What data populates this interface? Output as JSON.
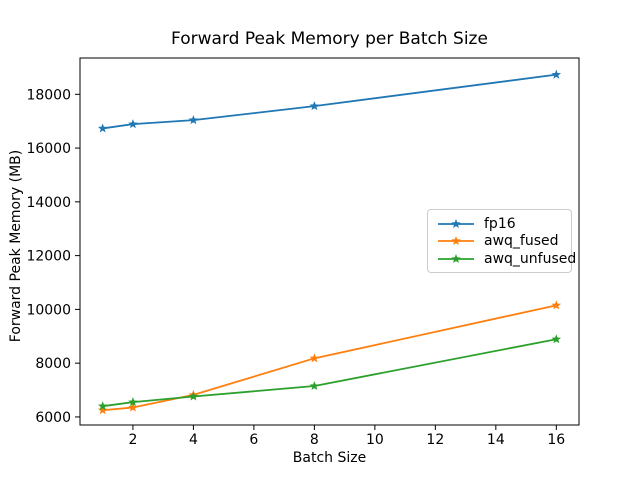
{
  "figure": {
    "background": "#ffffff",
    "spine_color": "#000000",
    "tick_color": "#000000"
  },
  "chart_data": {
    "type": "line",
    "title": "Forward Peak Memory per Batch Size",
    "xlabel": "Batch Size",
    "ylabel": "Forward Peak Memory (MB)",
    "x": [
      1,
      2,
      4,
      8,
      16
    ],
    "series": [
      {
        "name": "fp16",
        "color": "#1f77b4",
        "marker": "star",
        "values": [
          16730,
          16890,
          17040,
          17560,
          18730
        ]
      },
      {
        "name": "awq_fused",
        "color": "#ff7f0e",
        "marker": "star",
        "values": [
          6250,
          6350,
          6820,
          8180,
          10150
        ]
      },
      {
        "name": "awq_unfused",
        "color": "#2ca02c",
        "marker": "star",
        "values": [
          6400,
          6550,
          6760,
          7150,
          8890
        ]
      }
    ],
    "xlim": [
      0.25,
      16.75
    ],
    "ylim": [
      5700,
      19350
    ],
    "xticks": [
      2,
      4,
      6,
      8,
      10,
      12,
      14,
      16
    ],
    "yticks": [
      6000,
      8000,
      10000,
      12000,
      14000,
      16000,
      18000
    ],
    "grid": false,
    "legend_position": "center-right",
    "legend_entries": [
      "fp16",
      "awq_fused",
      "awq_unfused"
    ]
  }
}
